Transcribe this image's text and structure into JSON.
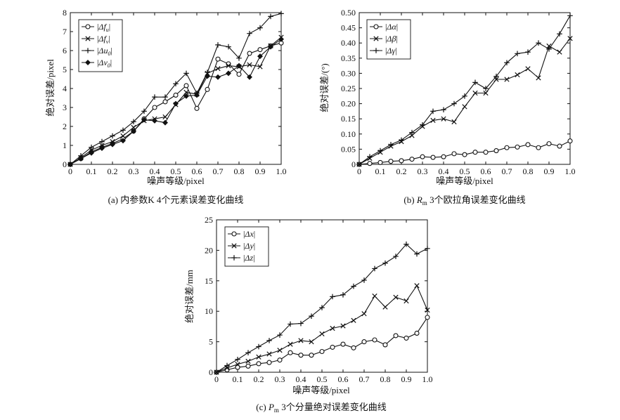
{
  "chart_data": [
    {
      "id": "a",
      "type": "line",
      "caption": "(a) 内参数K 4个元素误差变化曲线",
      "xlabel": "噪声等级/pixel",
      "ylabel": "绝对误差/pixel",
      "xlim": [
        0,
        1
      ],
      "ylim": [
        0,
        8
      ],
      "xticks": [
        0,
        0.1,
        0.2,
        0.3,
        0.4,
        0.5,
        0.6,
        0.7,
        0.8,
        0.9,
        1.0
      ],
      "xtick_labels": [
        "0",
        "0.1",
        "0.2",
        "0.3",
        "0.4",
        "0.5",
        "0.6",
        "0.7",
        "0.8",
        "0.9",
        "1.0"
      ],
      "yticks": [
        0,
        1,
        2,
        3,
        4,
        5,
        6,
        7,
        8
      ],
      "ytick_labels": [
        "0",
        "1",
        "2",
        "3",
        "4",
        "5",
        "6",
        "7",
        "8"
      ],
      "legend_position": "top-left",
      "grid": false,
      "x": [
        0,
        0.05,
        0.1,
        0.15,
        0.2,
        0.25,
        0.3,
        0.35,
        0.4,
        0.45,
        0.5,
        0.55,
        0.6,
        0.65,
        0.7,
        0.75,
        0.8,
        0.85,
        0.9,
        0.95,
        1.0
      ],
      "series": [
        {
          "name": "|Δf_u|",
          "marker": "circle",
          "values": [
            0,
            0.3,
            0.65,
            0.9,
            1.1,
            1.35,
            1.75,
            2.4,
            3.0,
            3.3,
            3.65,
            4.15,
            2.95,
            3.95,
            5.55,
            5.3,
            4.75,
            5.85,
            6.05,
            6.25,
            6.4
          ]
        },
        {
          "name": "|Δf_v|",
          "marker": "cross",
          "values": [
            0,
            0.35,
            0.75,
            1.0,
            1.2,
            1.5,
            1.95,
            2.3,
            2.4,
            2.5,
            3.15,
            3.8,
            3.7,
            4.8,
            5.05,
            5.2,
            5.15,
            5.25,
            5.15,
            6.25,
            6.7
          ]
        },
        {
          "name": "|Δu_0|",
          "marker": "plus",
          "values": [
            0,
            0.45,
            0.9,
            1.2,
            1.5,
            1.8,
            2.25,
            2.8,
            3.55,
            3.55,
            4.25,
            4.8,
            3.75,
            4.85,
            6.3,
            6.2,
            5.6,
            6.9,
            7.2,
            7.8,
            7.95
          ]
        },
        {
          "name": "|Δv_0|",
          "marker": "diamond",
          "values": [
            0,
            0.3,
            0.6,
            0.85,
            1.05,
            1.25,
            1.75,
            2.35,
            2.3,
            2.2,
            3.2,
            3.6,
            3.65,
            4.65,
            4.6,
            4.8,
            5.2,
            4.6,
            5.7,
            6.2,
            6.6
          ]
        }
      ]
    },
    {
      "id": "b",
      "type": "line",
      "caption_prefix": "(b) ",
      "caption_symbol": "R",
      "caption_sub": "m",
      "caption_suffix": " 3个欧拉角误差变化曲线",
      "xlabel": "噪声等级/pixel",
      "ylabel": "绝对误差/(°)",
      "xlim": [
        0,
        1
      ],
      "ylim": [
        0,
        0.5
      ],
      "xticks": [
        0,
        0.1,
        0.2,
        0.3,
        0.4,
        0.5,
        0.6,
        0.7,
        0.8,
        0.9,
        1.0
      ],
      "xtick_labels": [
        "0",
        "0.1",
        "0.2",
        "0.3",
        "0.4",
        "0.5",
        "0.6",
        "0.7",
        "0.8",
        "0.9",
        "1.0"
      ],
      "yticks": [
        0,
        0.05,
        0.1,
        0.15,
        0.2,
        0.25,
        0.3,
        0.35,
        0.4,
        0.45,
        0.5
      ],
      "ytick_labels": [
        "0",
        "0.05",
        "0.10",
        "0.15",
        "0.20",
        "0.25",
        "0.30",
        "0.35",
        "0.40",
        "0.45",
        "0.50"
      ],
      "legend_position": "top-left",
      "grid": false,
      "x": [
        0,
        0.05,
        0.1,
        0.15,
        0.2,
        0.25,
        0.3,
        0.35,
        0.4,
        0.45,
        0.5,
        0.55,
        0.6,
        0.65,
        0.7,
        0.75,
        0.8,
        0.85,
        0.9,
        0.95,
        1.0
      ],
      "series": [
        {
          "name": "|Δα|",
          "marker": "circle",
          "values": [
            0,
            0.003,
            0.006,
            0.01,
            0.012,
            0.017,
            0.025,
            0.023,
            0.025,
            0.035,
            0.032,
            0.04,
            0.04,
            0.045,
            0.055,
            0.057,
            0.065,
            0.055,
            0.068,
            0.06,
            0.077
          ]
        },
        {
          "name": "|Δβ|",
          "marker": "cross",
          "values": [
            0,
            0.02,
            0.04,
            0.06,
            0.075,
            0.095,
            0.125,
            0.145,
            0.15,
            0.14,
            0.19,
            0.235,
            0.235,
            0.28,
            0.28,
            0.295,
            0.315,
            0.285,
            0.39,
            0.37,
            0.415
          ]
        },
        {
          "name": "|Δγ|",
          "marker": "plus",
          "values": [
            0,
            0.025,
            0.045,
            0.065,
            0.08,
            0.105,
            0.13,
            0.175,
            0.18,
            0.2,
            0.225,
            0.27,
            0.25,
            0.29,
            0.335,
            0.365,
            0.37,
            0.4,
            0.38,
            0.43,
            0.49
          ]
        }
      ]
    },
    {
      "id": "c",
      "type": "line",
      "caption_prefix": "(c) ",
      "caption_symbol": "P",
      "caption_sub": "m",
      "caption_suffix": " 3个分量绝对误差变化曲线",
      "xlabel": "噪声等级/pixel",
      "ylabel": "绝对误差/mm",
      "xlim": [
        0,
        1
      ],
      "ylim": [
        0,
        25
      ],
      "xticks": [
        0,
        0.1,
        0.2,
        0.3,
        0.4,
        0.5,
        0.6,
        0.7,
        0.8,
        0.9,
        1.0
      ],
      "xtick_labels": [
        "0",
        "0.1",
        "0.2",
        "0.3",
        "0.4",
        "0.5",
        "0.6",
        "0.7",
        "0.8",
        "0.9",
        "1.0"
      ],
      "yticks": [
        0,
        5,
        10,
        15,
        20,
        25
      ],
      "ytick_labels": [
        "0",
        "5",
        "10",
        "15",
        "20",
        "25"
      ],
      "legend_position": "top-left",
      "grid": false,
      "x": [
        0,
        0.05,
        0.1,
        0.15,
        0.2,
        0.25,
        0.3,
        0.35,
        0.4,
        0.45,
        0.5,
        0.55,
        0.6,
        0.65,
        0.7,
        0.75,
        0.8,
        0.85,
        0.9,
        0.95,
        1.0
      ],
      "series": [
        {
          "name": "|Δx|",
          "marker": "circle",
          "values": [
            0,
            0.4,
            0.8,
            1.0,
            1.4,
            1.6,
            2.0,
            3.2,
            2.8,
            2.8,
            3.4,
            4.1,
            4.6,
            4.0,
            5.0,
            5.3,
            4.5,
            6.0,
            5.6,
            6.4,
            9.0
          ]
        },
        {
          "name": "|Δy|",
          "marker": "cross",
          "values": [
            0,
            0.7,
            1.3,
            1.8,
            2.5,
            3.0,
            3.6,
            4.6,
            5.2,
            5.0,
            6.3,
            7.2,
            7.6,
            8.5,
            9.6,
            12.5,
            10.7,
            12.3,
            11.7,
            14.2,
            10.2
          ]
        },
        {
          "name": "|Δz|",
          "marker": "plus",
          "values": [
            0,
            1.1,
            2.1,
            3.2,
            4.2,
            5.2,
            6.1,
            7.9,
            8.0,
            9.2,
            10.6,
            12.4,
            12.7,
            14.1,
            15.1,
            17.0,
            17.9,
            19.0,
            21.0,
            19.4,
            20.3
          ]
        }
      ]
    }
  ]
}
